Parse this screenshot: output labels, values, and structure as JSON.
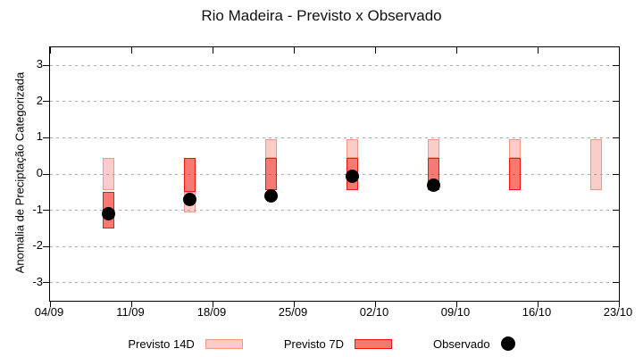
{
  "title": "Rio Madeira - Previsto x Observado",
  "axes": {
    "y_label": "Anomalia de Preciptação Categorizada",
    "y_ticks": [
      "3",
      "2",
      "1",
      "0",
      "-1",
      "-2",
      "-3"
    ],
    "x_ticks": [
      "04/09",
      "11/09",
      "18/09",
      "25/09",
      "02/10",
      "09/10",
      "16/10",
      "23/10"
    ]
  },
  "legend": {
    "items": [
      {
        "label": "Previsto 14D",
        "swatch": "box-light"
      },
      {
        "label": "Previsto 7D",
        "swatch": "box-dark"
      },
      {
        "label": "Observado",
        "swatch": "dot"
      }
    ]
  },
  "colors": {
    "previsto_14d_fill": "rgba(240,100,85,0.32)",
    "previsto_14d_border": "#f0968b",
    "previsto_7d_fill": "rgba(242,40,28,0.62)",
    "previsto_7d_border": "#ee1511",
    "observado": "#000000",
    "grid": "#a9a9a9"
  },
  "chart_data": {
    "type": "bar",
    "title": "Rio Madeira - Previsto x Observado",
    "xlabel": "",
    "ylabel": "Anomalia de Preciptação Categorizada",
    "ylim": [
      -3.5,
      3.5
    ],
    "y_tick_values": [
      3,
      2,
      1,
      0,
      -1,
      -2,
      -3
    ],
    "x_range": [
      "04/09",
      "23/10"
    ],
    "x_tick_labels": [
      "04/09",
      "11/09",
      "18/09",
      "25/09",
      "02/10",
      "09/10",
      "16/10",
      "23/10"
    ],
    "grid": "horizontal-dashed",
    "legend_position": "bottom",
    "bar_width_days": 1,
    "series": [
      {
        "name": "Previsto 14D",
        "type": "range-bar",
        "ranges": [
          {
            "x": "09/09",
            "low": -0.45,
            "high": 0.45
          },
          {
            "x": "16/09",
            "low": -1.05,
            "high": -0.5
          },
          {
            "x": "23/09",
            "low": 0.45,
            "high": 0.95
          },
          {
            "x": "30/09",
            "low": 0.45,
            "high": 0.95
          },
          {
            "x": "07/10",
            "low": 0.45,
            "high": 0.95
          },
          {
            "x": "14/10",
            "low": 0.45,
            "high": 0.95
          },
          {
            "x": "21/10",
            "low": -0.45,
            "high": 0.95
          }
        ]
      },
      {
        "name": "Previsto 7D",
        "type": "range-bar",
        "ranges": [
          {
            "x": "09/09",
            "low": -1.5,
            "high": -0.5
          },
          {
            "x": "16/09",
            "low": -0.5,
            "high": 0.45
          },
          {
            "x": "23/09",
            "low": -0.45,
            "high": 0.45
          },
          {
            "x": "30/09",
            "low": -0.45,
            "high": 0.45
          },
          {
            "x": "07/10",
            "low": -0.45,
            "high": 0.45
          },
          {
            "x": "14/10",
            "low": -0.45,
            "high": 0.45
          }
        ]
      },
      {
        "name": "Observado",
        "type": "scatter",
        "points": [
          {
            "x": "09/09",
            "y": -1.1
          },
          {
            "x": "16/09",
            "y": -0.7
          },
          {
            "x": "23/09",
            "y": -0.6
          },
          {
            "x": "30/09",
            "y": -0.05
          },
          {
            "x": "07/10",
            "y": -0.3
          }
        ]
      }
    ]
  }
}
